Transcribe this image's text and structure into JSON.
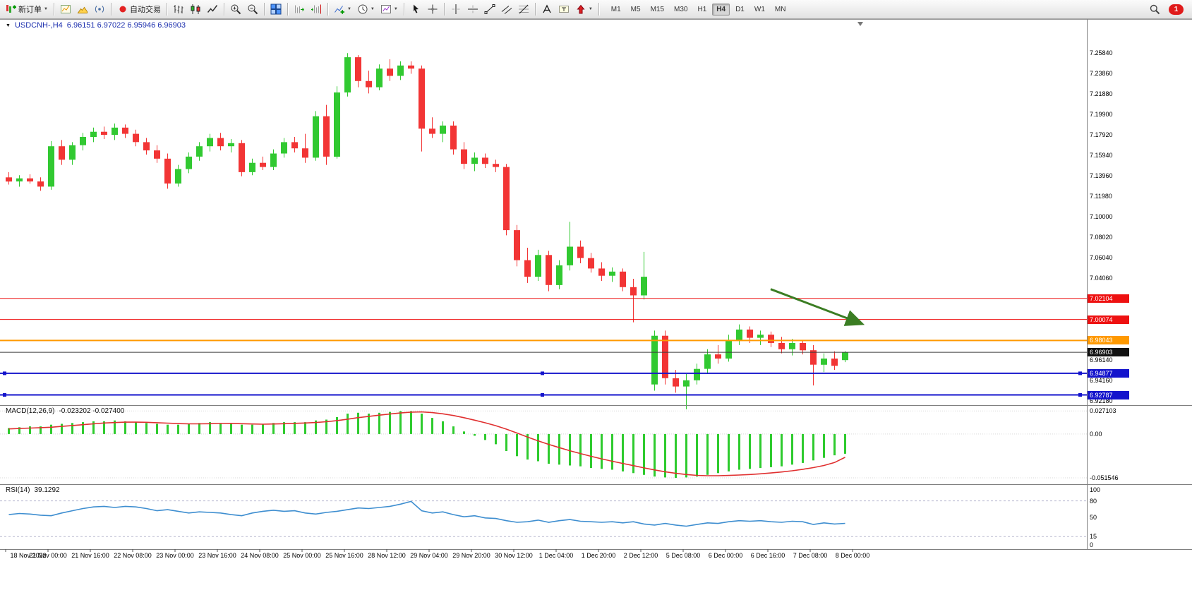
{
  "toolbar": {
    "groups": [
      {
        "items": [
          {
            "name": "new-order",
            "label": "新订单",
            "caret": true
          }
        ]
      },
      {
        "items": [
          {
            "name": "charts-window"
          },
          {
            "name": "profile"
          },
          {
            "name": "data-signal"
          }
        ]
      },
      {
        "items": [
          {
            "name": "autotrade",
            "label": "自动交易"
          }
        ]
      },
      {
        "items": [
          {
            "name": "bar-chart"
          },
          {
            "name": "candlestick-chart"
          },
          {
            "name": "line-chart"
          }
        ]
      },
      {
        "items": [
          {
            "name": "zoom-in"
          },
          {
            "name": "zoom-out"
          }
        ]
      },
      {
        "items": [
          {
            "name": "tile-windows"
          }
        ]
      },
      {
        "items": [
          {
            "name": "auto-scroll"
          },
          {
            "name": "chart-shift"
          }
        ]
      },
      {
        "items": [
          {
            "name": "indicators",
            "caret": true
          },
          {
            "name": "periods",
            "caret": true
          },
          {
            "name": "templates",
            "caret": true
          }
        ]
      },
      {
        "items": [
          {
            "name": "cursor"
          },
          {
            "name": "crosshair"
          }
        ]
      },
      {
        "items": [
          {
            "name": "vertical-line"
          },
          {
            "name": "horizontal-line"
          },
          {
            "name": "trendline"
          },
          {
            "name": "equidistant-channel"
          },
          {
            "name": "fibonacci"
          }
        ]
      },
      {
        "items": [
          {
            "name": "text"
          },
          {
            "name": "text-label"
          },
          {
            "name": "arrows",
            "caret": true
          }
        ]
      }
    ],
    "timeframes": [
      "M1",
      "M5",
      "M15",
      "M30",
      "H1",
      "H4",
      "D1",
      "W1",
      "MN"
    ],
    "active_timeframe": "H4",
    "notification_count": "1"
  },
  "chart": {
    "title_symbol": "USDCNH-,H4",
    "title_ohlc": "6.96151 6.97022 6.95946 6.96903"
  },
  "indicators": {
    "macd": {
      "name": "MACD(12,26,9)",
      "values": "-0.023202 -0.027400"
    },
    "rsi": {
      "name": "RSI(14)",
      "value": "39.1292"
    }
  },
  "chart_data": {
    "type": "candlestick",
    "title": "USDCNH-,H4",
    "symbol": "USDCNH-",
    "period": "H4",
    "ohlc_current": {
      "open": 6.96151,
      "high": 6.97022,
      "low": 6.95946,
      "close": 6.96903
    },
    "up_color": "#31c931",
    "down_color": "#f23535",
    "price_axis_labels": [
      "7.25840",
      "7.23860",
      "7.21880",
      "7.19900",
      "7.17920",
      "7.15940",
      "7.13960",
      "7.11980",
      "7.10000",
      "7.08020",
      "7.06040",
      "7.04060",
      "6.96140",
      "6.94160",
      "6.92180"
    ],
    "times": [
      "18 Nov 2022",
      "21 Nov 00:00",
      "21 Nov 16:00",
      "22 Nov 08:00",
      "23 Nov 00:00",
      "23 Nov 16:00",
      "24 Nov 08:00",
      "25 Nov 00:00",
      "25 Nov 16:00",
      "28 Nov 12:00",
      "29 Nov 04:00",
      "29 Nov 20:00",
      "30 Nov 12:00",
      "1 Dec 04:00",
      "1 Dec 20:00",
      "2 Dec 12:00",
      "5 Dec 08:00",
      "6 Dec 00:00",
      "6 Dec 16:00",
      "7 Dec 08:00",
      "8 Dec 00:00"
    ],
    "candles": [
      [
        7.138,
        7.143,
        7.131,
        7.134
      ],
      [
        7.134,
        7.14,
        7.129,
        7.137
      ],
      [
        7.137,
        7.141,
        7.132,
        7.134
      ],
      [
        7.134,
        7.138,
        7.125,
        7.129
      ],
      [
        7.129,
        7.173,
        7.126,
        7.168
      ],
      [
        7.168,
        7.174,
        7.15,
        7.155
      ],
      [
        7.155,
        7.172,
        7.15,
        7.169
      ],
      [
        7.169,
        7.181,
        7.164,
        7.177
      ],
      [
        7.177,
        7.186,
        7.172,
        7.182
      ],
      [
        7.182,
        7.187,
        7.175,
        7.179
      ],
      [
        7.179,
        7.19,
        7.174,
        7.186
      ],
      [
        7.186,
        7.189,
        7.176,
        7.18
      ],
      [
        7.18,
        7.184,
        7.168,
        7.172
      ],
      [
        7.172,
        7.176,
        7.16,
        7.164
      ],
      [
        7.164,
        7.169,
        7.152,
        7.156
      ],
      [
        7.156,
        7.161,
        7.127,
        7.132
      ],
      [
        7.132,
        7.15,
        7.129,
        7.146
      ],
      [
        7.146,
        7.162,
        7.142,
        7.158
      ],
      [
        7.158,
        7.172,
        7.154,
        7.168
      ],
      [
        7.168,
        7.18,
        7.163,
        7.176
      ],
      [
        7.176,
        7.181,
        7.164,
        7.168
      ],
      [
        7.168,
        7.175,
        7.162,
        7.171
      ],
      [
        7.171,
        7.174,
        7.139,
        7.143
      ],
      [
        7.143,
        7.156,
        7.14,
        7.152
      ],
      [
        7.152,
        7.158,
        7.145,
        7.148
      ],
      [
        7.148,
        7.165,
        7.145,
        7.161
      ],
      [
        7.161,
        7.176,
        7.157,
        7.172
      ],
      [
        7.172,
        7.177,
        7.162,
        7.166
      ],
      [
        7.166,
        7.18,
        7.152,
        7.157
      ],
      [
        7.157,
        7.202,
        7.154,
        7.197
      ],
      [
        7.197,
        7.208,
        7.15,
        7.158
      ],
      [
        7.158,
        7.226,
        7.156,
        7.22
      ],
      [
        7.22,
        7.258,
        7.216,
        7.254
      ],
      [
        7.254,
        7.256,
        7.225,
        7.231
      ],
      [
        7.231,
        7.241,
        7.219,
        7.225
      ],
      [
        7.225,
        7.247,
        7.222,
        7.243
      ],
      [
        7.243,
        7.252,
        7.231,
        7.236
      ],
      [
        7.236,
        7.25,
        7.232,
        7.246
      ],
      [
        7.246,
        7.25,
        7.238,
        7.243
      ],
      [
        7.243,
        7.246,
        7.163,
        7.185
      ],
      [
        7.185,
        7.196,
        7.176,
        7.18
      ],
      [
        7.18,
        7.192,
        7.172,
        7.188
      ],
      [
        7.188,
        7.192,
        7.16,
        7.165
      ],
      [
        7.165,
        7.172,
        7.146,
        7.151
      ],
      [
        7.151,
        7.162,
        7.144,
        7.157
      ],
      [
        7.157,
        7.161,
        7.147,
        7.151
      ],
      [
        7.151,
        7.155,
        7.143,
        7.148
      ],
      [
        7.148,
        7.151,
        7.082,
        7.087
      ],
      [
        7.087,
        7.092,
        7.052,
        7.058
      ],
      [
        7.058,
        7.07,
        7.036,
        7.042
      ],
      [
        7.042,
        7.068,
        7.038,
        7.063
      ],
      [
        7.063,
        7.067,
        7.028,
        7.034
      ],
      [
        7.034,
        7.058,
        7.03,
        7.053
      ],
      [
        7.053,
        7.095,
        7.048,
        7.071
      ],
      [
        7.071,
        7.077,
        7.055,
        7.06
      ],
      [
        7.06,
        7.065,
        7.046,
        7.05
      ],
      [
        7.05,
        7.056,
        7.038,
        7.043
      ],
      [
        7.043,
        7.051,
        7.037,
        7.047
      ],
      [
        7.047,
        7.05,
        7.028,
        7.032
      ],
      [
        7.032,
        7.04,
        6.998,
        7.024
      ],
      [
        7.024,
        7.066,
        7.02,
        7.042
      ],
      [
        6.938,
        6.99,
        6.932,
        6.985
      ],
      [
        6.985,
        6.99,
        6.938,
        6.944
      ],
      [
        6.944,
        6.952,
        6.93,
        6.936
      ],
      [
        6.936,
        6.948,
        6.914,
        6.942
      ],
      [
        6.942,
        6.958,
        6.938,
        6.953
      ],
      [
        6.953,
        6.972,
        6.948,
        6.967
      ],
      [
        6.967,
        6.976,
        6.958,
        6.963
      ],
      [
        6.963,
        6.986,
        6.96,
        6.981
      ],
      [
        6.981,
        6.996,
        6.976,
        6.991
      ],
      [
        6.991,
        6.994,
        6.978,
        6.983
      ],
      [
        6.983,
        6.99,
        6.976,
        6.986
      ],
      [
        6.986,
        6.989,
        6.974,
        6.978
      ],
      [
        6.978,
        6.984,
        6.968,
        6.972
      ],
      [
        6.972,
        6.982,
        6.966,
        6.978
      ],
      [
        6.978,
        6.981,
        6.967,
        6.971
      ],
      [
        6.971,
        6.976,
        6.937,
        6.957
      ],
      [
        6.957,
        6.968,
        6.95,
        6.963
      ],
      [
        6.963,
        6.97,
        6.952,
        6.956
      ],
      [
        6.9615,
        6.9702,
        6.9595,
        6.969
      ]
    ],
    "hlines": [
      {
        "price": "7.02104",
        "color": "#ee1111",
        "width": 1,
        "handles": false
      },
      {
        "price": "7.00074",
        "color": "#ee1111",
        "width": 1,
        "handles": false
      },
      {
        "price": "6.98043",
        "color": "#ff9900",
        "width": 2,
        "handles": false
      },
      {
        "price": "6.94877",
        "color": "#1414cc",
        "width": 2,
        "handles": true
      },
      {
        "price": "6.92787",
        "color": "#1414cc",
        "width": 2,
        "handles": true
      }
    ],
    "bid": {
      "price": "6.96903",
      "value": 6.96903,
      "badge_bg": "#111111",
      "line_color": "#3c3c3c"
    },
    "arrow_annotation": {
      "color": "#3b7d23",
      "from": {
        "index": 72,
        "price": 7.03
      },
      "to": {
        "index": 80.5,
        "price": 6.997
      }
    },
    "macd": {
      "axis_labels": [
        "0.027103",
        "0.00",
        "-0.051546"
      ],
      "axis_values": [
        0.027103,
        0,
        -0.051546
      ],
      "histogram_color": "#2ecb2e",
      "signal_color": "#e03030",
      "histogram": [
        0.007,
        0.008,
        0.009,
        0.009,
        0.011,
        0.012,
        0.013,
        0.014,
        0.015,
        0.015,
        0.016,
        0.015,
        0.014,
        0.013,
        0.012,
        0.011,
        0.011,
        0.012,
        0.013,
        0.014,
        0.013,
        0.013,
        0.011,
        0.011,
        0.012,
        0.013,
        0.014,
        0.014,
        0.014,
        0.016,
        0.017,
        0.02,
        0.024,
        0.025,
        0.024,
        0.025,
        0.026,
        0.027,
        0.027,
        0.024,
        0.019,
        0.015,
        0.009,
        0.003,
        -0.002,
        -0.007,
        -0.012,
        -0.02,
        -0.026,
        -0.03,
        -0.032,
        -0.035,
        -0.036,
        -0.037,
        -0.038,
        -0.04,
        -0.041,
        -0.042,
        -0.044,
        -0.046,
        -0.048,
        -0.05,
        -0.051,
        -0.0515,
        -0.051,
        -0.05,
        -0.048,
        -0.046,
        -0.044,
        -0.042,
        -0.041,
        -0.04,
        -0.039,
        -0.038,
        -0.036,
        -0.034,
        -0.031,
        -0.028,
        -0.025,
        -0.0232
      ],
      "signal": [
        0.006,
        0.0065,
        0.007,
        0.0075,
        0.008,
        0.009,
        0.01,
        0.011,
        0.012,
        0.013,
        0.0135,
        0.014,
        0.014,
        0.0138,
        0.0133,
        0.0128,
        0.0123,
        0.012,
        0.012,
        0.0122,
        0.0124,
        0.0125,
        0.0122,
        0.0118,
        0.0116,
        0.0118,
        0.0122,
        0.0126,
        0.013,
        0.0136,
        0.0145,
        0.0158,
        0.0175,
        0.0193,
        0.0208,
        0.0222,
        0.0235,
        0.0248,
        0.0258,
        0.026,
        0.0252,
        0.0238,
        0.0218,
        0.0192,
        0.0163,
        0.0132,
        0.0098,
        0.0058,
        0.0012,
        -0.0035,
        -0.008,
        -0.0122,
        -0.016,
        -0.0196,
        -0.023,
        -0.0262,
        -0.0292,
        -0.032,
        -0.0346,
        -0.0372,
        -0.0398,
        -0.0422,
        -0.0444,
        -0.0462,
        -0.0476,
        -0.0486,
        -0.049,
        -0.049,
        -0.0487,
        -0.0482,
        -0.0476,
        -0.0468,
        -0.0458,
        -0.0446,
        -0.0432,
        -0.0415,
        -0.0395,
        -0.037,
        -0.0335,
        -0.0274
      ]
    },
    "rsi": {
      "axis_labels": [
        "100",
        "80",
        "50",
        "15",
        "0"
      ],
      "axis_values": [
        100,
        80,
        50,
        15,
        0
      ],
      "levels": [
        80,
        15
      ],
      "line_color": "#3e8ed0",
      "series": [
        55,
        57,
        56,
        54,
        53,
        58,
        62,
        66,
        69,
        70,
        68,
        70,
        69,
        66,
        62,
        64,
        61,
        58,
        60,
        59,
        58,
        55,
        53,
        58,
        61,
        63,
        61,
        62,
        58,
        56,
        59,
        61,
        64,
        67,
        66,
        68,
        70,
        74,
        79,
        62,
        58,
        60,
        55,
        51,
        53,
        49,
        48,
        44,
        41,
        42,
        45,
        41,
        44,
        46,
        43,
        42,
        41,
        42,
        40,
        42,
        38,
        36,
        39,
        36,
        34,
        37,
        40,
        39,
        42,
        44,
        43,
        44,
        42,
        41,
        43,
        42,
        37,
        40,
        38,
        39.13
      ]
    }
  }
}
